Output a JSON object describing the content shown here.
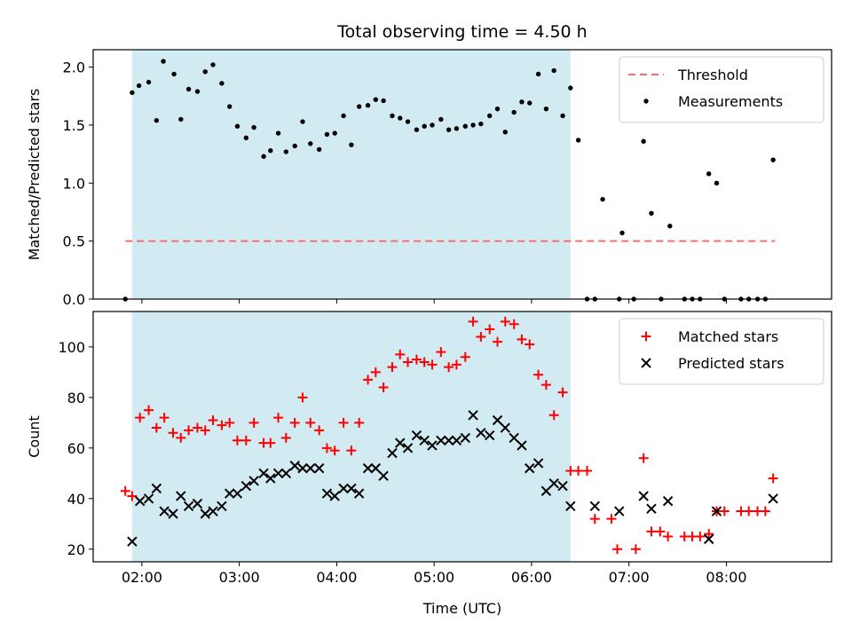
{
  "chart_data": {
    "title": "Total observing time = 4.50 h",
    "xlabel": "Time (UTC)",
    "x_unit": "hours UTC",
    "x_range": [
      1.5,
      9.08
    ],
    "x_ticks": [
      {
        "value": 2,
        "label": "02:00"
      },
      {
        "value": 3,
        "label": "03:00"
      },
      {
        "value": 4,
        "label": "04:00"
      },
      {
        "value": 5,
        "label": "05:00"
      },
      {
        "value": 6,
        "label": "06:00"
      },
      {
        "value": 7,
        "label": "07:00"
      },
      {
        "value": 8,
        "label": "08:00"
      }
    ],
    "observing_window": {
      "start": 1.9,
      "end": 6.4,
      "color": "#add8e6"
    },
    "panels": [
      {
        "type": "scatter",
        "ylabel": "Matched/Predicted stars",
        "ylim": [
          0.0,
          2.15
        ],
        "y_ticks": [
          "0.0",
          "0.5",
          "1.0",
          "1.5",
          "2.0"
        ],
        "legend_position": "upper right",
        "threshold": {
          "name": "Threshold",
          "value": 0.5,
          "x_from": 1.83,
          "x_to": 8.5,
          "color": "#ff6b6b"
        },
        "series": [
          {
            "name": "Measurements",
            "marker": "dot",
            "color": "#000000",
            "points": [
              [
                1.83,
                0.0
              ],
              [
                1.9,
                1.78
              ],
              [
                1.97,
                1.84
              ],
              [
                2.07,
                1.87
              ],
              [
                2.15,
                1.54
              ],
              [
                2.22,
                2.05
              ],
              [
                2.33,
                1.94
              ],
              [
                2.4,
                1.55
              ],
              [
                2.48,
                1.81
              ],
              [
                2.57,
                1.79
              ],
              [
                2.65,
                1.96
              ],
              [
                2.73,
                2.02
              ],
              [
                2.82,
                1.86
              ],
              [
                2.9,
                1.66
              ],
              [
                2.98,
                1.49
              ],
              [
                3.07,
                1.39
              ],
              [
                3.15,
                1.48
              ],
              [
                3.25,
                1.23
              ],
              [
                3.32,
                1.28
              ],
              [
                3.4,
                1.43
              ],
              [
                3.48,
                1.27
              ],
              [
                3.57,
                1.32
              ],
              [
                3.65,
                1.53
              ],
              [
                3.73,
                1.34
              ],
              [
                3.82,
                1.29
              ],
              [
                3.9,
                1.42
              ],
              [
                3.98,
                1.43
              ],
              [
                4.07,
                1.58
              ],
              [
                4.15,
                1.33
              ],
              [
                4.23,
                1.66
              ],
              [
                4.32,
                1.67
              ],
              [
                4.4,
                1.72
              ],
              [
                4.48,
                1.71
              ],
              [
                4.57,
                1.58
              ],
              [
                4.65,
                1.56
              ],
              [
                4.73,
                1.53
              ],
              [
                4.82,
                1.46
              ],
              [
                4.9,
                1.49
              ],
              [
                4.98,
                1.5
              ],
              [
                5.07,
                1.55
              ],
              [
                5.15,
                1.46
              ],
              [
                5.23,
                1.47
              ],
              [
                5.32,
                1.49
              ],
              [
                5.4,
                1.5
              ],
              [
                5.48,
                1.51
              ],
              [
                5.57,
                1.58
              ],
              [
                5.65,
                1.64
              ],
              [
                5.73,
                1.44
              ],
              [
                5.82,
                1.61
              ],
              [
                5.9,
                1.7
              ],
              [
                5.98,
                1.69
              ],
              [
                6.07,
                1.94
              ],
              [
                6.15,
                1.64
              ],
              [
                6.23,
                1.97
              ],
              [
                6.32,
                1.58
              ],
              [
                6.4,
                1.82
              ],
              [
                6.48,
                1.37
              ],
              [
                6.57,
                0.0
              ],
              [
                6.65,
                0.0
              ],
              [
                6.73,
                0.86
              ],
              [
                6.9,
                0.0
              ],
              [
                6.93,
                0.57
              ],
              [
                7.05,
                0.0
              ],
              [
                7.15,
                1.36
              ],
              [
                7.23,
                0.74
              ],
              [
                7.33,
                0.0
              ],
              [
                7.42,
                0.63
              ],
              [
                7.57,
                0.0
              ],
              [
                7.65,
                0.0
              ],
              [
                7.73,
                0.0
              ],
              [
                7.82,
                1.08
              ],
              [
                7.9,
                1.0
              ],
              [
                7.98,
                0.0
              ],
              [
                8.15,
                0.0
              ],
              [
                8.23,
                0.0
              ],
              [
                8.32,
                0.0
              ],
              [
                8.4,
                0.0
              ],
              [
                8.48,
                1.2
              ]
            ]
          }
        ]
      },
      {
        "type": "scatter",
        "ylabel": "Count",
        "ylim": [
          15,
          114
        ],
        "y_ticks": [
          "20",
          "40",
          "60",
          "80",
          "100"
        ],
        "legend_position": "upper right",
        "series": [
          {
            "name": "Matched stars",
            "marker": "plus",
            "color": "#ff0000",
            "points": [
              [
                1.83,
                43
              ],
              [
                1.9,
                41
              ],
              [
                1.98,
                72
              ],
              [
                2.07,
                75
              ],
              [
                2.15,
                68
              ],
              [
                2.23,
                72
              ],
              [
                2.32,
                66
              ],
              [
                2.4,
                64
              ],
              [
                2.48,
                67
              ],
              [
                2.57,
                68
              ],
              [
                2.65,
                67
              ],
              [
                2.73,
                71
              ],
              [
                2.82,
                69
              ],
              [
                2.9,
                70
              ],
              [
                2.98,
                63
              ],
              [
                3.07,
                63
              ],
              [
                3.15,
                70
              ],
              [
                3.25,
                62
              ],
              [
                3.32,
                62
              ],
              [
                3.4,
                72
              ],
              [
                3.48,
                64
              ],
              [
                3.57,
                70
              ],
              [
                3.65,
                80
              ],
              [
                3.73,
                70
              ],
              [
                3.82,
                67
              ],
              [
                3.9,
                60
              ],
              [
                3.98,
                59
              ],
              [
                4.07,
                70
              ],
              [
                4.15,
                59
              ],
              [
                4.23,
                70
              ],
              [
                4.32,
                87
              ],
              [
                4.4,
                90
              ],
              [
                4.48,
                84
              ],
              [
                4.57,
                92
              ],
              [
                4.65,
                97
              ],
              [
                4.73,
                94
              ],
              [
                4.82,
                95
              ],
              [
                4.9,
                94
              ],
              [
                4.98,
                93
              ],
              [
                5.07,
                98
              ],
              [
                5.15,
                92
              ],
              [
                5.23,
                93
              ],
              [
                5.32,
                96
              ],
              [
                5.4,
                110
              ],
              [
                5.48,
                104
              ],
              [
                5.57,
                107
              ],
              [
                5.65,
                102
              ],
              [
                5.73,
                110
              ],
              [
                5.82,
                109
              ],
              [
                5.9,
                103
              ],
              [
                5.98,
                101
              ],
              [
                6.07,
                89
              ],
              [
                6.15,
                85
              ],
              [
                6.23,
                73
              ],
              [
                6.32,
                82
              ],
              [
                6.4,
                51
              ],
              [
                6.48,
                51
              ],
              [
                6.57,
                51
              ],
              [
                6.65,
                32
              ],
              [
                6.82,
                32
              ],
              [
                6.88,
                20
              ],
              [
                7.07,
                20
              ],
              [
                7.15,
                56
              ],
              [
                7.23,
                27
              ],
              [
                7.32,
                27
              ],
              [
                7.4,
                25
              ],
              [
                7.57,
                25
              ],
              [
                7.65,
                25
              ],
              [
                7.73,
                25
              ],
              [
                7.82,
                26
              ],
              [
                7.9,
                35
              ],
              [
                7.98,
                35
              ],
              [
                8.15,
                35
              ],
              [
                8.23,
                35
              ],
              [
                8.32,
                35
              ],
              [
                8.4,
                35
              ],
              [
                8.48,
                48
              ]
            ]
          },
          {
            "name": "Predicted stars",
            "marker": "x",
            "color": "#000000",
            "points": [
              [
                1.9,
                23
              ],
              [
                1.98,
                39
              ],
              [
                2.07,
                40
              ],
              [
                2.15,
                44
              ],
              [
                2.23,
                35
              ],
              [
                2.32,
                34
              ],
              [
                2.4,
                41
              ],
              [
                2.48,
                37
              ],
              [
                2.57,
                38
              ],
              [
                2.65,
                34
              ],
              [
                2.73,
                35
              ],
              [
                2.82,
                37
              ],
              [
                2.9,
                42
              ],
              [
                2.98,
                42
              ],
              [
                3.07,
                45
              ],
              [
                3.15,
                47
              ],
              [
                3.25,
                50
              ],
              [
                3.32,
                48
              ],
              [
                3.4,
                50
              ],
              [
                3.48,
                50
              ],
              [
                3.57,
                53
              ],
              [
                3.65,
                52
              ],
              [
                3.73,
                52
              ],
              [
                3.82,
                52
              ],
              [
                3.9,
                42
              ],
              [
                3.98,
                41
              ],
              [
                4.07,
                44
              ],
              [
                4.15,
                44
              ],
              [
                4.23,
                42
              ],
              [
                4.32,
                52
              ],
              [
                4.4,
                52
              ],
              [
                4.48,
                49
              ],
              [
                4.57,
                58
              ],
              [
                4.65,
                62
              ],
              [
                4.73,
                60
              ],
              [
                4.82,
                65
              ],
              [
                4.9,
                63
              ],
              [
                4.98,
                61
              ],
              [
                5.07,
                63
              ],
              [
                5.15,
                63
              ],
              [
                5.23,
                63
              ],
              [
                5.32,
                64
              ],
              [
                5.4,
                73
              ],
              [
                5.48,
                66
              ],
              [
                5.57,
                65
              ],
              [
                5.65,
                71
              ],
              [
                5.73,
                68
              ],
              [
                5.82,
                64
              ],
              [
                5.9,
                61
              ],
              [
                5.98,
                52
              ],
              [
                6.07,
                54
              ],
              [
                6.15,
                43
              ],
              [
                6.23,
                46
              ],
              [
                6.32,
                45
              ],
              [
                6.4,
                37
              ],
              [
                6.65,
                37
              ],
              [
                6.9,
                35
              ],
              [
                7.15,
                41
              ],
              [
                7.23,
                36
              ],
              [
                7.4,
                39
              ],
              [
                7.82,
                24
              ],
              [
                7.9,
                35
              ],
              [
                8.48,
                40
              ]
            ]
          }
        ]
      }
    ]
  }
}
